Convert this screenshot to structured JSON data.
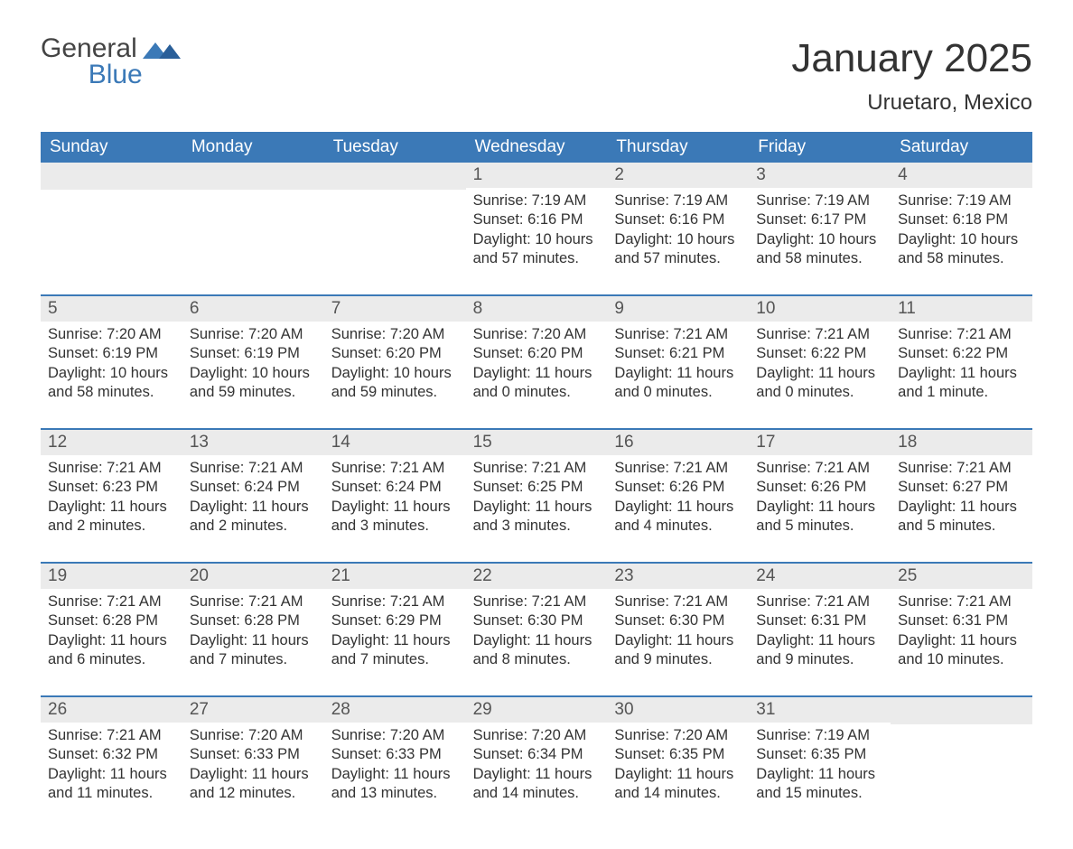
{
  "logo": {
    "general": "General",
    "blue": "Blue"
  },
  "title": "January 2025",
  "location": "Uruetaro, Mexico",
  "colors": {
    "header_bg": "#3b79b7",
    "header_fg": "#ffffff",
    "daynum_bg": "#ebebeb",
    "text": "#333333",
    "accent": "#3b79b7"
  },
  "dow": [
    "Sunday",
    "Monday",
    "Tuesday",
    "Wednesday",
    "Thursday",
    "Friday",
    "Saturday"
  ],
  "weeks": [
    [
      null,
      null,
      null,
      {
        "n": "1",
        "sr": "7:19 AM",
        "ss": "6:16 PM",
        "dl": "10 hours and 57 minutes."
      },
      {
        "n": "2",
        "sr": "7:19 AM",
        "ss": "6:16 PM",
        "dl": "10 hours and 57 minutes."
      },
      {
        "n": "3",
        "sr": "7:19 AM",
        "ss": "6:17 PM",
        "dl": "10 hours and 58 minutes."
      },
      {
        "n": "4",
        "sr": "7:19 AM",
        "ss": "6:18 PM",
        "dl": "10 hours and 58 minutes."
      }
    ],
    [
      {
        "n": "5",
        "sr": "7:20 AM",
        "ss": "6:19 PM",
        "dl": "10 hours and 58 minutes."
      },
      {
        "n": "6",
        "sr": "7:20 AM",
        "ss": "6:19 PM",
        "dl": "10 hours and 59 minutes."
      },
      {
        "n": "7",
        "sr": "7:20 AM",
        "ss": "6:20 PM",
        "dl": "10 hours and 59 minutes."
      },
      {
        "n": "8",
        "sr": "7:20 AM",
        "ss": "6:20 PM",
        "dl": "11 hours and 0 minutes."
      },
      {
        "n": "9",
        "sr": "7:21 AM",
        "ss": "6:21 PM",
        "dl": "11 hours and 0 minutes."
      },
      {
        "n": "10",
        "sr": "7:21 AM",
        "ss": "6:22 PM",
        "dl": "11 hours and 0 minutes."
      },
      {
        "n": "11",
        "sr": "7:21 AM",
        "ss": "6:22 PM",
        "dl": "11 hours and 1 minute."
      }
    ],
    [
      {
        "n": "12",
        "sr": "7:21 AM",
        "ss": "6:23 PM",
        "dl": "11 hours and 2 minutes."
      },
      {
        "n": "13",
        "sr": "7:21 AM",
        "ss": "6:24 PM",
        "dl": "11 hours and 2 minutes."
      },
      {
        "n": "14",
        "sr": "7:21 AM",
        "ss": "6:24 PM",
        "dl": "11 hours and 3 minutes."
      },
      {
        "n": "15",
        "sr": "7:21 AM",
        "ss": "6:25 PM",
        "dl": "11 hours and 3 minutes."
      },
      {
        "n": "16",
        "sr": "7:21 AM",
        "ss": "6:26 PM",
        "dl": "11 hours and 4 minutes."
      },
      {
        "n": "17",
        "sr": "7:21 AM",
        "ss": "6:26 PM",
        "dl": "11 hours and 5 minutes."
      },
      {
        "n": "18",
        "sr": "7:21 AM",
        "ss": "6:27 PM",
        "dl": "11 hours and 5 minutes."
      }
    ],
    [
      {
        "n": "19",
        "sr": "7:21 AM",
        "ss": "6:28 PM",
        "dl": "11 hours and 6 minutes."
      },
      {
        "n": "20",
        "sr": "7:21 AM",
        "ss": "6:28 PM",
        "dl": "11 hours and 7 minutes."
      },
      {
        "n": "21",
        "sr": "7:21 AM",
        "ss": "6:29 PM",
        "dl": "11 hours and 7 minutes."
      },
      {
        "n": "22",
        "sr": "7:21 AM",
        "ss": "6:30 PM",
        "dl": "11 hours and 8 minutes."
      },
      {
        "n": "23",
        "sr": "7:21 AM",
        "ss": "6:30 PM",
        "dl": "11 hours and 9 minutes."
      },
      {
        "n": "24",
        "sr": "7:21 AM",
        "ss": "6:31 PM",
        "dl": "11 hours and 9 minutes."
      },
      {
        "n": "25",
        "sr": "7:21 AM",
        "ss": "6:31 PM",
        "dl": "11 hours and 10 minutes."
      }
    ],
    [
      {
        "n": "26",
        "sr": "7:21 AM",
        "ss": "6:32 PM",
        "dl": "11 hours and 11 minutes."
      },
      {
        "n": "27",
        "sr": "7:20 AM",
        "ss": "6:33 PM",
        "dl": "11 hours and 12 minutes."
      },
      {
        "n": "28",
        "sr": "7:20 AM",
        "ss": "6:33 PM",
        "dl": "11 hours and 13 minutes."
      },
      {
        "n": "29",
        "sr": "7:20 AM",
        "ss": "6:34 PM",
        "dl": "11 hours and 14 minutes."
      },
      {
        "n": "30",
        "sr": "7:20 AM",
        "ss": "6:35 PM",
        "dl": "11 hours and 14 minutes."
      },
      {
        "n": "31",
        "sr": "7:19 AM",
        "ss": "6:35 PM",
        "dl": "11 hours and 15 minutes."
      },
      null
    ]
  ],
  "labels": {
    "sunrise": "Sunrise: ",
    "sunset": "Sunset: ",
    "daylight": "Daylight: "
  }
}
